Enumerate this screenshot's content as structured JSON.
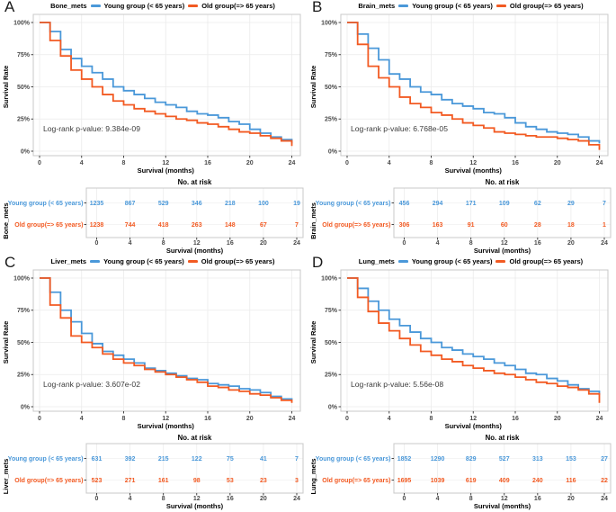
{
  "colors": {
    "young": "#4A98D9",
    "old": "#F25A22",
    "grid_major": "#EBEBEB",
    "panel_border": "#C8C8C8",
    "tick_text": "#4a4a4a",
    "pvalue_text": "#3c3c3c",
    "axis_text": "#000000"
  },
  "legend": {
    "young": "Young group (< 65 years)",
    "old": "Old group(=> 65 years)"
  },
  "axis": {
    "x_label": "Survival (months)",
    "y_label": "Survival Rate",
    "x_ticks": [
      0,
      4,
      8,
      12,
      16,
      20,
      24
    ],
    "y_ticks": [
      0,
      25,
      50,
      75,
      100
    ],
    "y_tick_labels": [
      "0%",
      "25%",
      "50%",
      "75%",
      "100%"
    ],
    "risk_header": "No. at risk"
  },
  "x_months": [
    0,
    1,
    2,
    3,
    4,
    5,
    6,
    7,
    8,
    9,
    10,
    11,
    12,
    13,
    14,
    15,
    16,
    17,
    18,
    19,
    20,
    21,
    22,
    23,
    24
  ],
  "chart_data": [
    {
      "type": "line",
      "letter": "A",
      "title": "Bone_mets",
      "pvalue_label": "Log-rank p-value: 9.384e-09",
      "xlabel": "Survival (months)",
      "ylabel": "Survival Rate",
      "ylim": [
        0,
        100
      ],
      "xlim": [
        0,
        24
      ],
      "series": [
        {
          "name": "Young group (< 65 years)",
          "color_key": "young",
          "values": [
            100,
            93,
            79,
            72,
            66,
            61,
            56,
            50,
            47,
            44,
            41,
            38,
            36,
            34,
            31,
            29,
            28,
            26,
            23,
            21,
            17,
            14,
            11,
            9,
            6
          ]
        },
        {
          "name": "Old group(=> 65 years)",
          "color_key": "old",
          "values": [
            100,
            86,
            74,
            63,
            56,
            50,
            44,
            39,
            36,
            33,
            31,
            29,
            27,
            25,
            24,
            22,
            21,
            19,
            17,
            15,
            14,
            12,
            10,
            8,
            4
          ]
        }
      ],
      "risk_table": {
        "times": [
          0,
          4,
          8,
          12,
          16,
          20,
          24
        ],
        "rows": [
          {
            "label": "Young group (< 65 years)",
            "color_key": "young",
            "values": [
              1235,
              867,
              529,
              346,
              218,
              100,
              19
            ]
          },
          {
            "label": "Old group(=> 65 years)",
            "color_key": "old",
            "values": [
              1238,
              744,
              418,
              263,
              148,
              67,
              7
            ]
          }
        ]
      }
    },
    {
      "type": "line",
      "letter": "B",
      "title": "Brain_mets",
      "pvalue_label": "Log-rank p-value: 6.768e-05",
      "xlabel": "Survival (months)",
      "ylabel": "Survival Rate",
      "ylim": [
        0,
        100
      ],
      "xlim": [
        0,
        24
      ],
      "series": [
        {
          "name": "Young group (< 65 years)",
          "color_key": "young",
          "values": [
            100,
            91,
            80,
            71,
            60,
            56,
            50,
            46,
            44,
            40,
            37,
            35,
            33,
            30,
            29,
            26,
            22,
            19,
            17,
            15,
            14,
            13,
            11,
            8,
            6
          ]
        },
        {
          "name": "Old group(=> 65 years)",
          "color_key": "old",
          "values": [
            100,
            83,
            66,
            57,
            50,
            42,
            37,
            34,
            30,
            28,
            25,
            22,
            20,
            18,
            15,
            14,
            13,
            12,
            11,
            11,
            10,
            9,
            8,
            5,
            1
          ]
        }
      ],
      "risk_table": {
        "times": [
          0,
          4,
          8,
          12,
          16,
          20,
          24
        ],
        "rows": [
          {
            "label": "Young group (< 65 years)",
            "color_key": "young",
            "values": [
              456,
              294,
              171,
              109,
              62,
              29,
              7
            ]
          },
          {
            "label": "Old group(=> 65 years)",
            "color_key": "old",
            "values": [
              306,
              163,
              91,
              60,
              28,
              18,
              1
            ]
          }
        ]
      }
    },
    {
      "type": "line",
      "letter": "C",
      "title": "Liver_mets",
      "pvalue_label": "Log-rank p-value: 3.607e-02",
      "xlabel": "Survival (months)",
      "ylabel": "Survival Rate",
      "ylim": [
        0,
        100
      ],
      "xlim": [
        0,
        24
      ],
      "series": [
        {
          "name": "Young group (< 65 years)",
          "color_key": "young",
          "values": [
            100,
            89,
            75,
            66,
            57,
            49,
            43,
            40,
            37,
            34,
            30,
            28,
            26,
            24,
            22,
            21,
            18,
            17,
            16,
            14,
            13,
            11,
            8,
            6,
            5
          ]
        },
        {
          "name": "Old group(=> 65 years)",
          "color_key": "old",
          "values": [
            100,
            79,
            69,
            55,
            50,
            46,
            41,
            37,
            34,
            32,
            29,
            27,
            25,
            23,
            21,
            19,
            16,
            15,
            13,
            12,
            10,
            9,
            7,
            5,
            3
          ]
        }
      ],
      "risk_table": {
        "times": [
          0,
          4,
          8,
          12,
          16,
          20,
          24
        ],
        "rows": [
          {
            "label": "Young group (< 65 years)",
            "color_key": "young",
            "values": [
              631,
              392,
              215,
              122,
              75,
              41,
              7
            ]
          },
          {
            "label": "Old group(=> 65 years)",
            "color_key": "old",
            "values": [
              523,
              271,
              161,
              98,
              53,
              23,
              3
            ]
          }
        ]
      }
    },
    {
      "type": "line",
      "letter": "D",
      "title": "Lung_mets",
      "pvalue_label": "Log-rank p-value: 5.56e-08",
      "xlabel": "Survival (months)",
      "ylabel": "Survival Rate",
      "ylim": [
        0,
        100
      ],
      "xlim": [
        0,
        24
      ],
      "series": [
        {
          "name": "Young group (< 65 years)",
          "color_key": "young",
          "values": [
            100,
            92,
            82,
            75,
            68,
            63,
            58,
            53,
            50,
            46,
            44,
            41,
            39,
            37,
            34,
            32,
            29,
            26,
            25,
            22,
            20,
            17,
            14,
            12,
            9
          ]
        },
        {
          "name": "Old group(=> 65 years)",
          "color_key": "old",
          "values": [
            100,
            85,
            74,
            65,
            59,
            53,
            48,
            43,
            40,
            37,
            35,
            32,
            30,
            28,
            26,
            25,
            23,
            21,
            19,
            18,
            16,
            15,
            13,
            10,
            3
          ]
        }
      ],
      "risk_table": {
        "times": [
          0,
          4,
          8,
          12,
          16,
          20,
          24
        ],
        "rows": [
          {
            "label": "Young group (< 65 years)",
            "color_key": "young",
            "values": [
              1852,
              1290,
              829,
              527,
              313,
              153,
              27
            ]
          },
          {
            "label": "Old group(=> 65 years)",
            "color_key": "old",
            "values": [
              1695,
              1039,
              619,
              409,
              240,
              116,
              22
            ]
          }
        ]
      }
    }
  ]
}
